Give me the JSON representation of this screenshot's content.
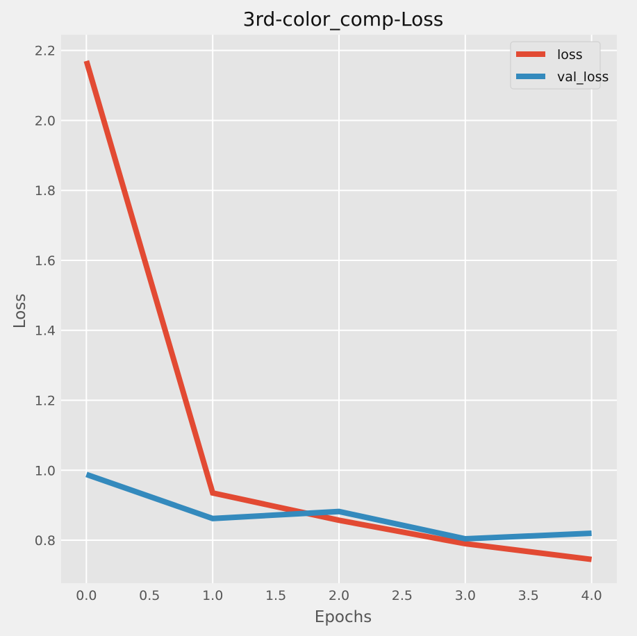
{
  "chart_data": {
    "type": "line",
    "title": "3rd-color_comp-Loss",
    "xlabel": "Epochs",
    "ylabel": "Loss",
    "x": [
      0,
      1,
      2,
      3,
      4
    ],
    "xlim": [
      -0.2,
      4.2
    ],
    "ylim": [
      0.677,
      2.245
    ],
    "xticks": [
      "0.0",
      "0.5",
      "1.0",
      "1.5",
      "2.0",
      "2.5",
      "3.0",
      "3.5",
      "4.0"
    ],
    "yticks": [
      "0.8",
      "1.0",
      "1.2",
      "1.4",
      "1.6",
      "1.8",
      "2.0",
      "2.2"
    ],
    "grid": true,
    "legend_position": "top-right",
    "series": [
      {
        "name": "loss",
        "color": "#E24A33",
        "values": [
          2.17,
          0.935,
          0.857,
          0.79,
          0.745
        ]
      },
      {
        "name": "val_loss",
        "color": "#348ABD",
        "values": [
          0.988,
          0.862,
          0.882,
          0.804,
          0.82
        ]
      }
    ]
  }
}
